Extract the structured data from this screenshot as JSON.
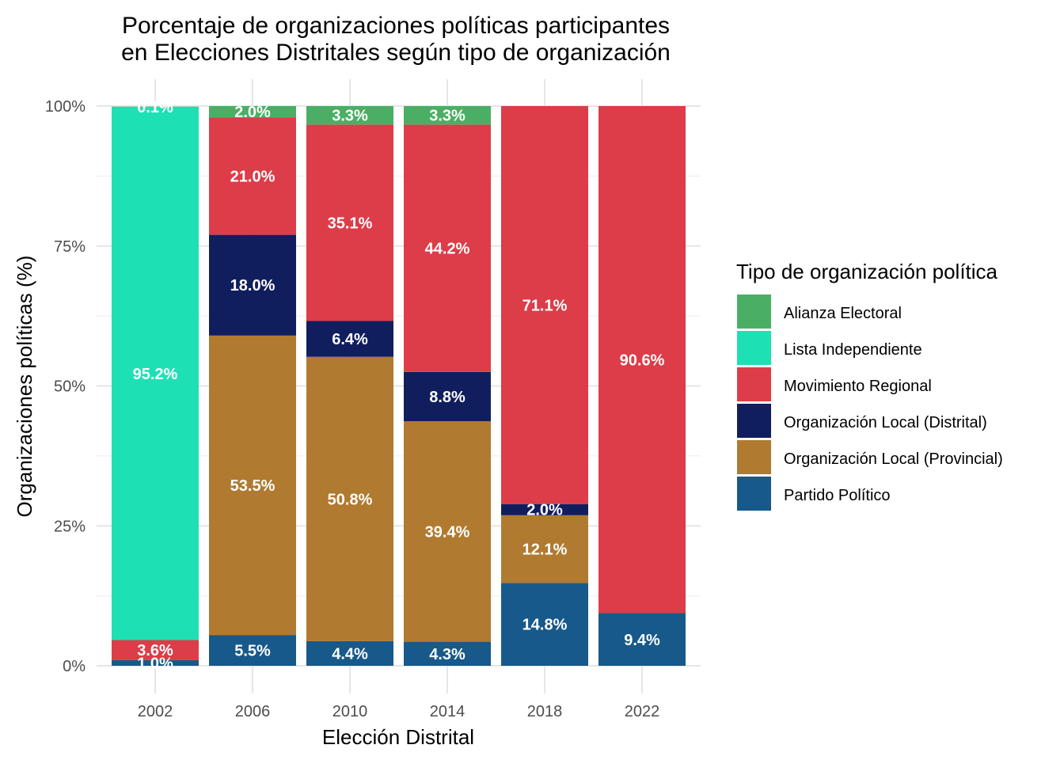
{
  "chart_data": {
    "type": "bar",
    "stacked": true,
    "title": "Porcentaje de organizaciones políticas participantes\nen Elecciones Distritales según tipo de organización",
    "xlabel": "Elección Distrital",
    "ylabel": "Organizaciones políticas (%)",
    "ylim": [
      0,
      100
    ],
    "yticks": [
      "0%",
      "25%",
      "50%",
      "75%",
      "100%"
    ],
    "grid": true,
    "legend_title": "Tipo de organización política",
    "legend_position": "right",
    "categories": [
      "2002",
      "2006",
      "2010",
      "2014",
      "2018",
      "2022"
    ],
    "series": [
      {
        "name": "Partido Político",
        "color": "#17598a",
        "values": [
          1.0,
          5.5,
          4.4,
          4.3,
          14.8,
          9.4
        ],
        "labels": [
          "1.0%",
          "5.5%",
          "4.4%",
          "4.3%",
          "14.8%",
          "9.4%"
        ]
      },
      {
        "name": "Organización Local (Provincial)",
        "color": "#b07a30",
        "values": [
          0,
          53.5,
          50.8,
          39.4,
          12.1,
          0
        ],
        "labels": [
          "",
          "53.5%",
          "50.8%",
          "39.4%",
          "12.1%",
          ""
        ]
      },
      {
        "name": "Organización Local (Distrital)",
        "color": "#111e5e",
        "values": [
          0,
          18.0,
          6.4,
          8.8,
          2.0,
          0
        ],
        "labels": [
          "",
          "18.0%",
          "6.4%",
          "8.8%",
          "2.0%",
          ""
        ]
      },
      {
        "name": "Movimiento Regional",
        "color": "#dc3d48",
        "values": [
          3.6,
          21.0,
          35.1,
          44.2,
          71.1,
          90.6
        ],
        "labels": [
          "3.6%",
          "21.0%",
          "35.1%",
          "44.2%",
          "71.1%",
          "90.6%"
        ]
      },
      {
        "name": "Lista Independiente",
        "color": "#1ee0b5",
        "values": [
          95.2,
          0,
          0,
          0,
          0,
          0
        ],
        "labels": [
          "95.2%",
          "",
          "",
          "",
          "",
          ""
        ]
      },
      {
        "name": "Alianza Electoral",
        "color": "#4aaf65",
        "values": [
          0.1,
          2.0,
          3.3,
          3.3,
          0,
          0
        ],
        "labels": [
          "0.1%",
          "2.0%",
          "3.3%",
          "3.3%",
          "",
          ""
        ]
      }
    ],
    "legend_order": [
      "Alianza Electoral",
      "Lista Independiente",
      "Movimiento Regional",
      "Organización Local (Distrital)",
      "Organización Local (Provincial)",
      "Partido Político"
    ]
  }
}
